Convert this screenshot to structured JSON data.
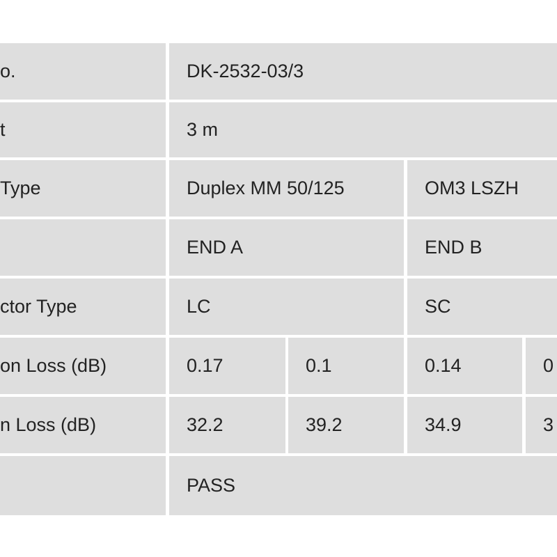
{
  "table": {
    "rows": [
      [
        "o.",
        "DK-2532-03/3"
      ],
      [
        "t",
        "3 m"
      ],
      [
        "Type",
        "Duplex MM 50/125",
        "OM3 LSZH"
      ],
      [
        null,
        "END A",
        "END B"
      ],
      [
        "ctor Type",
        "LC",
        "SC"
      ],
      [
        "on Loss (dB)",
        "0.17",
        "0.1",
        "0.14",
        "0"
      ],
      [
        "n Loss (dB)",
        "32.2",
        "39.2",
        "34.9",
        "3"
      ],
      [
        null,
        "PASS"
      ]
    ]
  }
}
